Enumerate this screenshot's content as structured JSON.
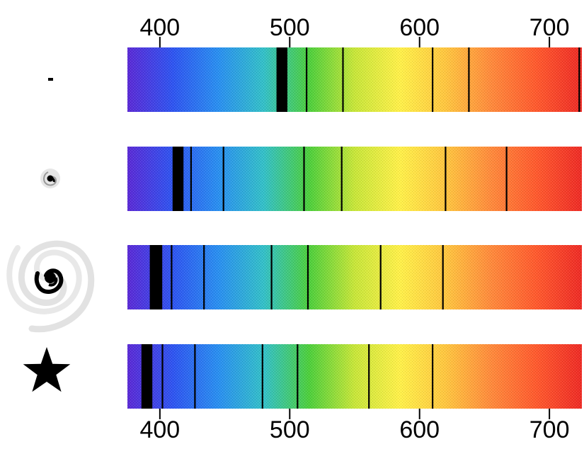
{
  "axis": {
    "unit": "",
    "ticks": [
      "400",
      "500",
      "600",
      "700"
    ],
    "tick_values": [
      400,
      500,
      600,
      700
    ],
    "wavelength_range": [
      375,
      725
    ]
  },
  "spectrum_colors": [
    "#5b2bd6",
    "#2f55f0",
    "#2a8ff0",
    "#34c0c8",
    "#4ecf3c",
    "#c8e63a",
    "#fff04a",
    "#ffc640",
    "#ff8a3c",
    "#ff5a2e",
    "#ee2c26"
  ],
  "line_color": "#000000",
  "rows": [
    {
      "object": "dot",
      "object_icon": "dot-icon",
      "absorption_lines": [
        {
          "wavelength": 491,
          "width": 2
        },
        {
          "wavelength": 493,
          "width": 2
        },
        {
          "wavelength": 495,
          "width": 3
        },
        {
          "wavelength": 497,
          "width": 2
        },
        {
          "wavelength": 513,
          "width": 1
        },
        {
          "wavelength": 541,
          "width": 1
        },
        {
          "wavelength": 610,
          "width": 1
        },
        {
          "wavelength": 638,
          "width": 1
        },
        {
          "wavelength": 723,
          "width": 1
        }
      ]
    },
    {
      "object": "small spiral galaxy",
      "object_icon": "small-spiral-galaxy-icon",
      "absorption_lines": [
        {
          "wavelength": 414,
          "width": 7
        },
        {
          "wavelength": 424,
          "width": 1
        },
        {
          "wavelength": 449,
          "width": 1
        },
        {
          "wavelength": 511,
          "width": 1
        },
        {
          "wavelength": 540,
          "width": 1
        },
        {
          "wavelength": 620,
          "width": 1
        },
        {
          "wavelength": 667,
          "width": 1
        }
      ]
    },
    {
      "object": "large spiral galaxy",
      "object_icon": "large-spiral-galaxy-icon",
      "absorption_lines": [
        {
          "wavelength": 397,
          "width": 8
        },
        {
          "wavelength": 409,
          "width": 1
        },
        {
          "wavelength": 434,
          "width": 1
        },
        {
          "wavelength": 486,
          "width": 1
        },
        {
          "wavelength": 514,
          "width": 1
        },
        {
          "wavelength": 570,
          "width": 1
        },
        {
          "wavelength": 618,
          "width": 1
        }
      ]
    },
    {
      "object": "star",
      "object_icon": "star-icon",
      "absorption_lines": [
        {
          "wavelength": 390,
          "width": 7
        },
        {
          "wavelength": 402,
          "width": 1
        },
        {
          "wavelength": 427,
          "width": 1
        },
        {
          "wavelength": 479,
          "width": 1
        },
        {
          "wavelength": 506,
          "width": 1
        },
        {
          "wavelength": 561,
          "width": 1
        },
        {
          "wavelength": 610,
          "width": 1
        }
      ]
    }
  ]
}
